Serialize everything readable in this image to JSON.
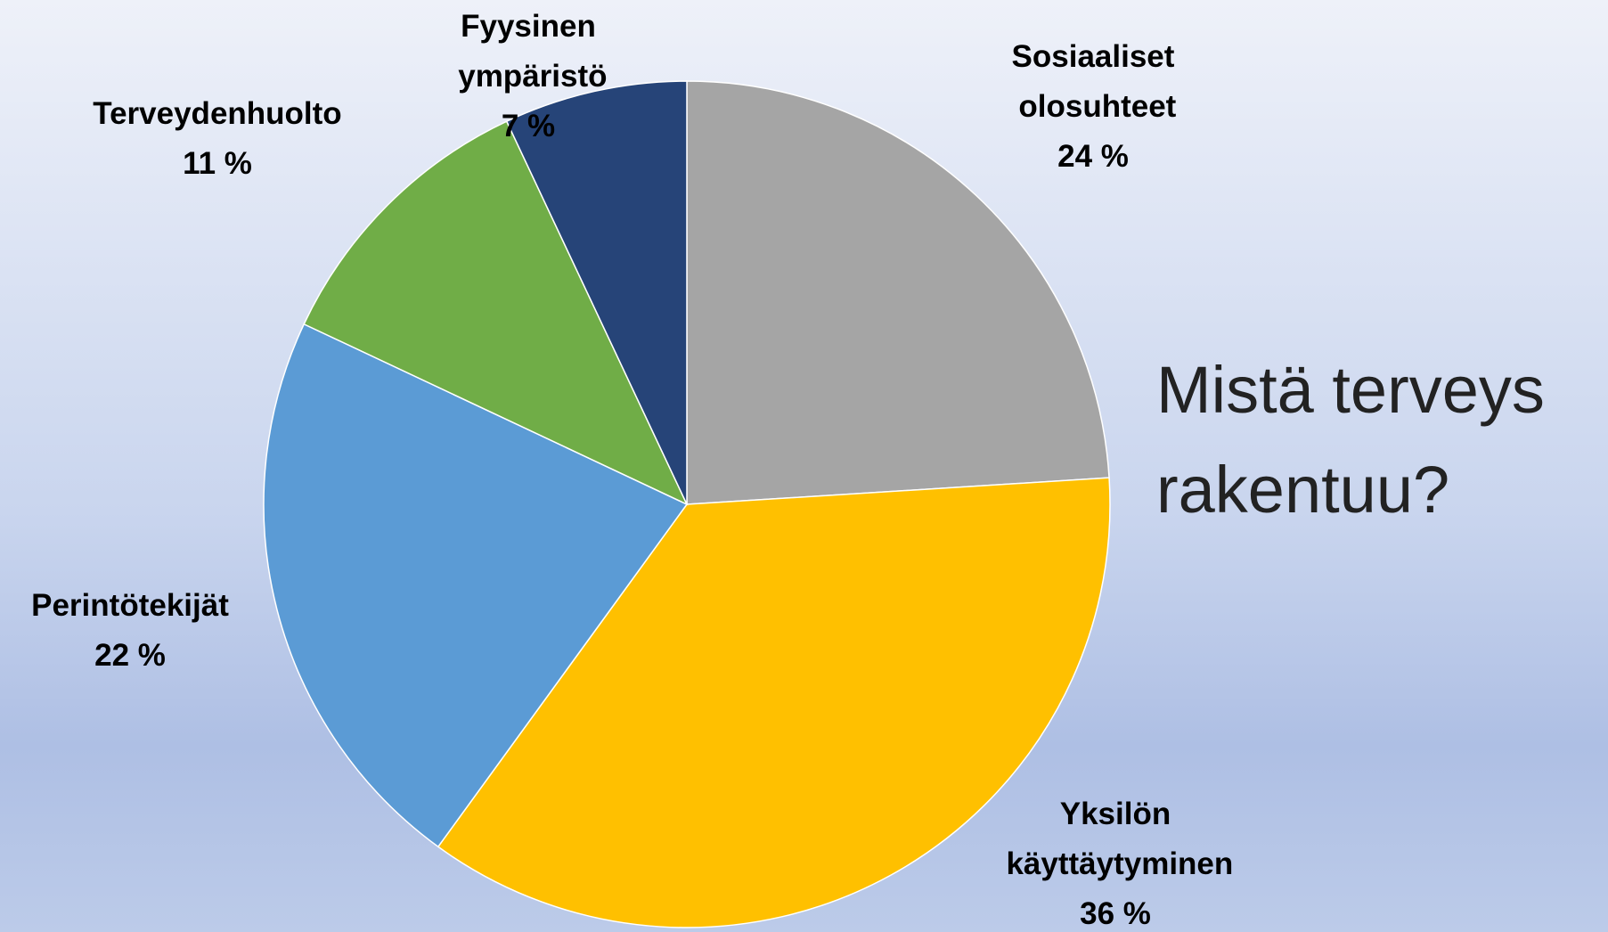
{
  "chart_data": {
    "type": "pie",
    "title": "Mistä terveys rakentuu?",
    "categories": [
      "Sosiaaliset olosuhteet",
      "Yksilön käyttäytyminen",
      "Perintötekijät",
      "Terveydenhuolto",
      "Fyysinen ympäristö"
    ],
    "values": [
      24,
      36,
      22,
      11,
      7
    ],
    "value_labels": [
      "24 %",
      "36 %",
      "22 %",
      "11 %",
      "7 %"
    ],
    "colors": [
      "#a5a5a5",
      "#ffc000",
      "#5b9bd5",
      "#70ad47",
      "#264478"
    ]
  }
}
